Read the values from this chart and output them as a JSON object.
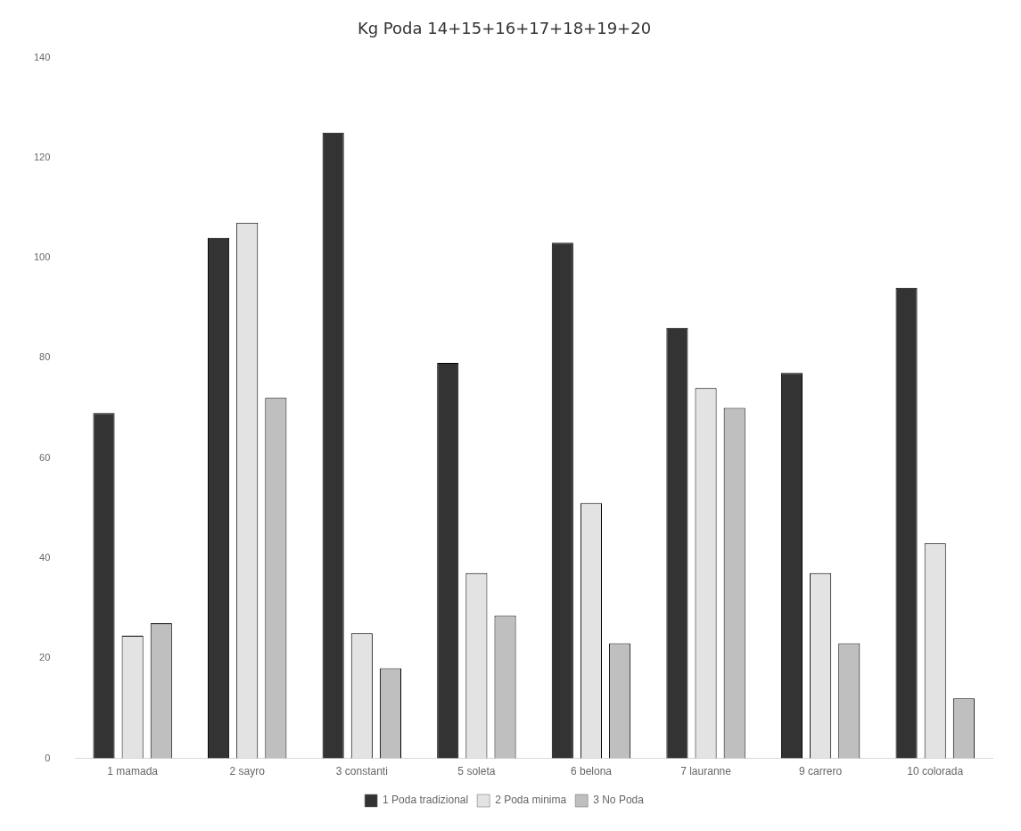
{
  "chart_data": {
    "type": "bar",
    "title": "Kg Poda 14+15+16+17+18+19+20",
    "categories": [
      "1 mamada",
      "2 sayro",
      "3 constanti",
      "5 soleta",
      "6 belona",
      "7 lauranne",
      "9 carrero",
      "10 colorada"
    ],
    "series": [
      {
        "name": "1 Poda tradizional",
        "color": "#333333",
        "values": [
          69,
          104,
          125,
          79,
          103,
          86,
          77,
          94
        ]
      },
      {
        "name": "2 Poda minima",
        "color": "#e3e3e3",
        "values": [
          24.5,
          107,
          25,
          37,
          51,
          74,
          37,
          43
        ]
      },
      {
        "name": "3 No Poda",
        "color": "#bfbfbf",
        "values": [
          27,
          72,
          18,
          28.5,
          23,
          70,
          23,
          12
        ]
      }
    ],
    "ylim": [
      0,
      140
    ],
    "yticks": [
      0,
      20,
      40,
      60,
      80,
      100,
      120,
      140
    ],
    "grid": false,
    "legend": "bottom"
  }
}
